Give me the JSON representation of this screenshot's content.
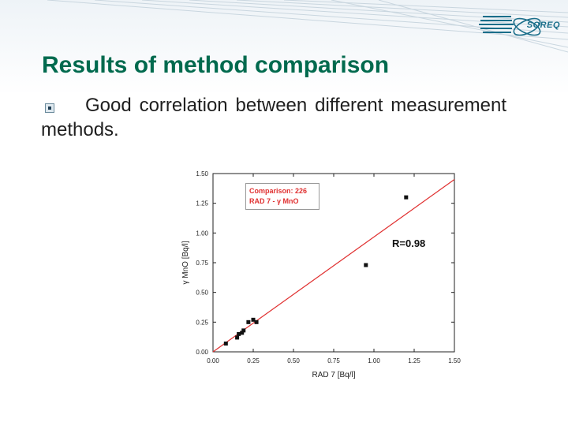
{
  "header": {
    "logo_text": "SOREQ",
    "title": "Results of method comparison"
  },
  "bullet": {
    "icon": "square-bullet-icon",
    "text": "Good correlation between different measurement methods."
  },
  "chart_data": {
    "type": "scatter",
    "title": "",
    "xlabel": "RAD 7 [Bq/l]",
    "ylabel": "γ MnO [Bq/l]",
    "xlim": [
      0,
      1.5
    ],
    "ylim": [
      0,
      1.5
    ],
    "xticks": [
      "0.00",
      "0.25",
      "0.50",
      "0.75",
      "1.00",
      "1.25",
      "1.50"
    ],
    "yticks": [
      "0.00",
      "0.25",
      "0.50",
      "0.75",
      "1.00",
      "1.25",
      "1.50"
    ],
    "grid": false,
    "legend": {
      "placement": "top-left",
      "lines": [
        "Comparison: 226",
        "RAD 7 - γ MnO"
      ]
    },
    "annotation": "R=0.98",
    "points": [
      {
        "x": 0.08,
        "y": 0.07
      },
      {
        "x": 0.15,
        "y": 0.12
      },
      {
        "x": 0.16,
        "y": 0.15
      },
      {
        "x": 0.18,
        "y": 0.16
      },
      {
        "x": 0.19,
        "y": 0.18
      },
      {
        "x": 0.22,
        "y": 0.25
      },
      {
        "x": 0.25,
        "y": 0.27
      },
      {
        "x": 0.27,
        "y": 0.25
      },
      {
        "x": 0.95,
        "y": 0.73
      },
      {
        "x": 1.2,
        "y": 1.3
      }
    ],
    "fit_line": {
      "x": [
        0,
        1.5
      ],
      "y": [
        0,
        1.45
      ],
      "color": "#e03030"
    },
    "colors": {
      "points": "#111111",
      "fit": "#e03030",
      "legend_text": "#e03030"
    }
  }
}
